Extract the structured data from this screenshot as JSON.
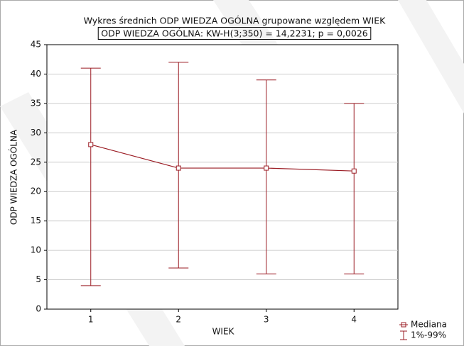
{
  "chart_data": {
    "type": "line",
    "title": "Wykres średnich ODP WIEDZA OGÓLNA grupowane względem WIEK",
    "subtitle": "ODP WIEDZA OGÓLNA:  KW-H(3;350) = 14,2231; p = 0,0026",
    "x_label": "WIEK",
    "y_label": "ODP WIEDZA OGÓLNA",
    "categories": [
      "1",
      "2",
      "3",
      "4"
    ],
    "series": [
      {
        "name": "Mediana",
        "color": "#9b1c24",
        "values": [
          28,
          24,
          24,
          23.5
        ]
      }
    ],
    "error_bars": {
      "name": "1%-99%",
      "color": "#9b1c24",
      "low": [
        4,
        7,
        6,
        6
      ],
      "high": [
        41,
        42,
        39,
        35
      ]
    },
    "ylim": [
      0,
      45
    ],
    "yticks": [
      0,
      5,
      10,
      15,
      20,
      25,
      30,
      35,
      40,
      45
    ],
    "grid": true,
    "legend": "bottom-right"
  }
}
